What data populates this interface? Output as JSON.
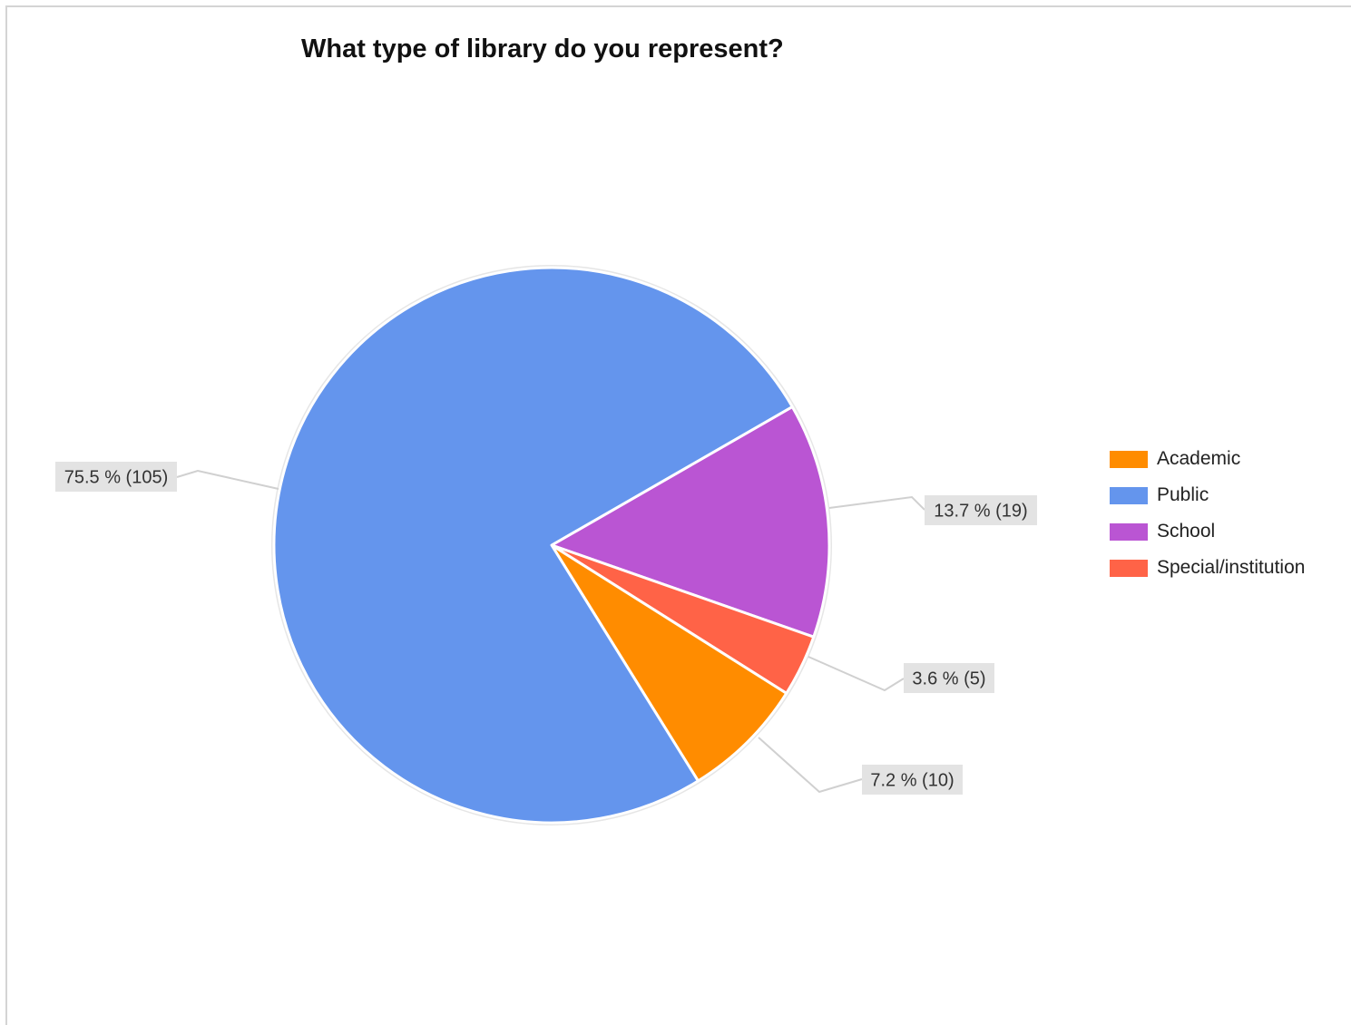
{
  "chart_data": {
    "type": "pie",
    "title": "What type of library do you represent?",
    "slices": [
      {
        "name": "Academic",
        "value": 10,
        "percent": 7.2,
        "color": "#ff8c00",
        "label": "7.2 % (10)"
      },
      {
        "name": "Public",
        "value": 105,
        "percent": 75.5,
        "color": "#6495ed",
        "label": "75.5 % (105)"
      },
      {
        "name": "School",
        "value": 19,
        "percent": 13.7,
        "color": "#ba55d3",
        "label": "13.7 % (19)"
      },
      {
        "name": "Special/institution",
        "value": 5,
        "percent": 3.6,
        "color": "#ff6347",
        "label": "3.6 % (5)"
      }
    ],
    "legend_position": "right"
  }
}
